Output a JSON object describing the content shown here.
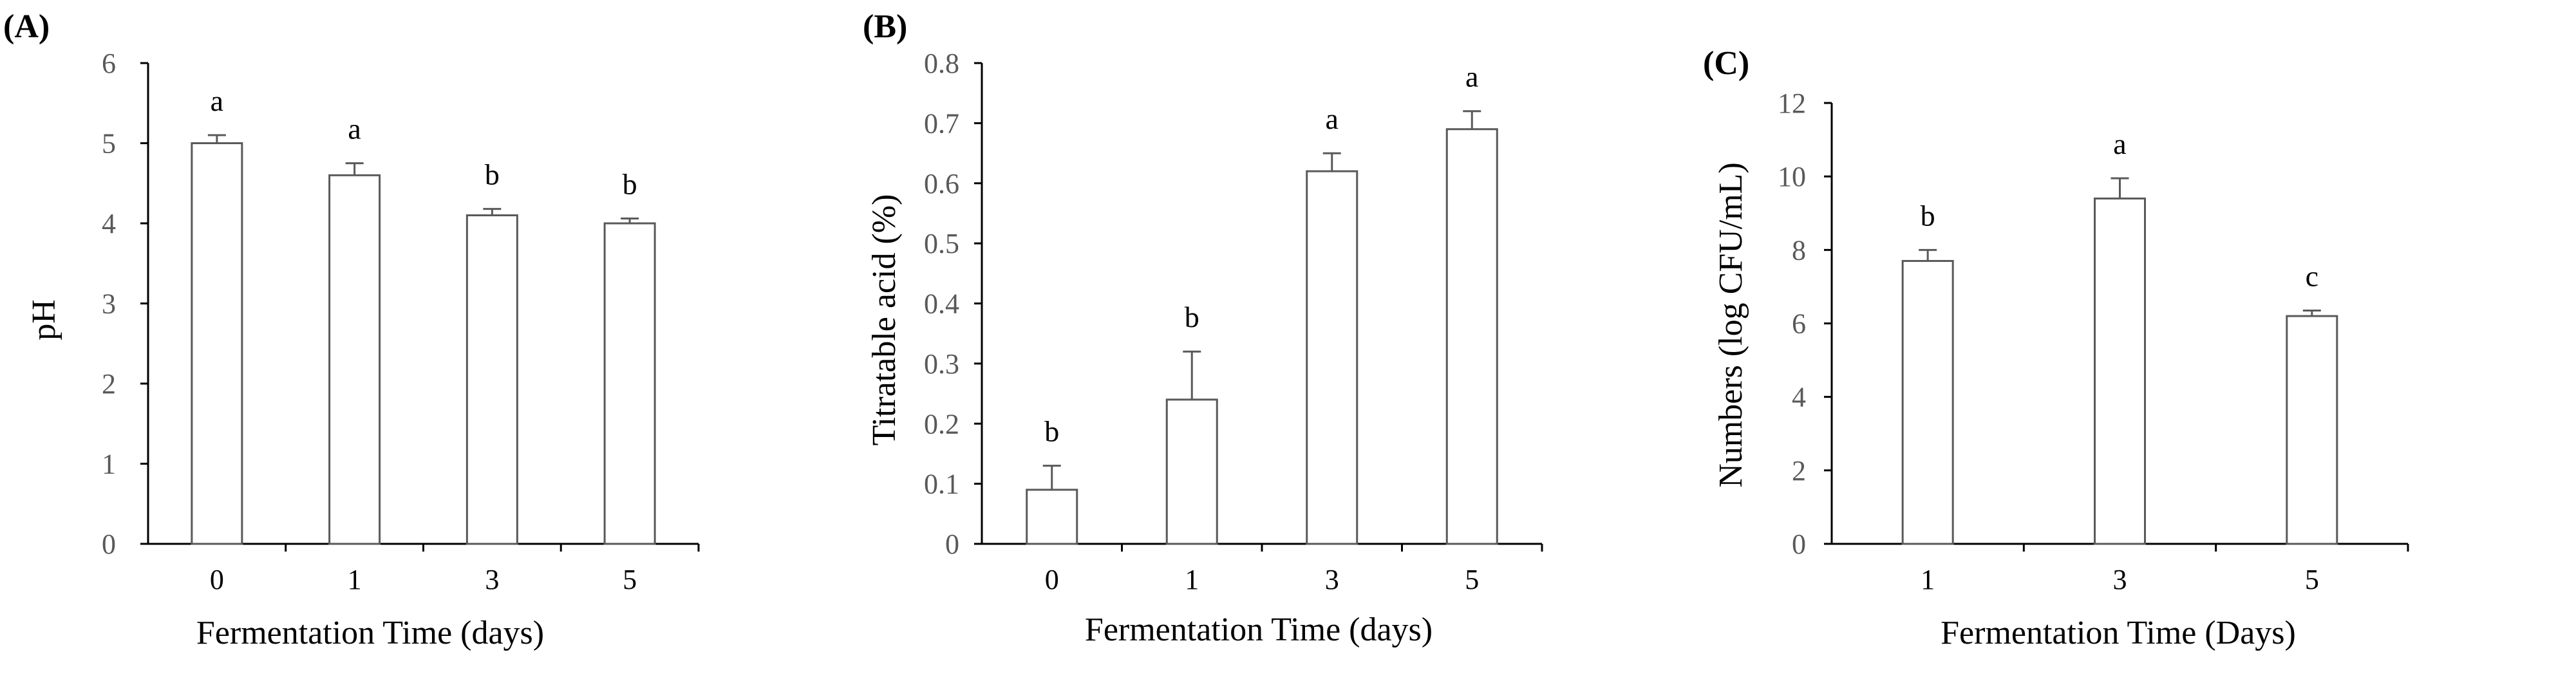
{
  "chart_data": [
    {
      "type": "bar",
      "panel_label": "(A)",
      "categories": [
        "0",
        "1",
        "3",
        "5"
      ],
      "values": [
        5.0,
        4.6,
        4.1,
        4.0
      ],
      "errors": [
        0.1,
        0.15,
        0.08,
        0.06
      ],
      "letters": [
        "a",
        "a",
        "b",
        "b"
      ],
      "ylabel": "pH",
      "xlabel": "Fermentation Time (days)",
      "ylim": [
        0,
        6
      ],
      "yticks": [
        "0",
        "1",
        "2",
        "3",
        "4",
        "5",
        "6"
      ]
    },
    {
      "type": "bar",
      "panel_label": "(B)",
      "categories": [
        "0",
        "1",
        "3",
        "5"
      ],
      "values": [
        0.09,
        0.24,
        0.62,
        0.69
      ],
      "errors": [
        0.04,
        0.08,
        0.03,
        0.03
      ],
      "letters": [
        "b",
        "b",
        "a",
        "a"
      ],
      "ylabel": "Titratable acid (%)",
      "xlabel": "Fermentation Time (days)",
      "ylim": [
        0,
        0.8
      ],
      "yticks": [
        "0",
        "0.1",
        "0.2",
        "0.3",
        "0.4",
        "0.5",
        "0.6",
        "0.7",
        "0.8"
      ]
    },
    {
      "type": "bar",
      "panel_label": "(C)",
      "categories": [
        "1",
        "3",
        "5"
      ],
      "values": [
        7.7,
        9.4,
        6.2
      ],
      "errors": [
        0.3,
        0.55,
        0.15
      ],
      "letters": [
        "b",
        "a",
        "c"
      ],
      "ylabel": "Numbers (log CFU/mL)",
      "xlabel": "Fermentation Time (Days)",
      "ylim": [
        0,
        12
      ],
      "yticks": [
        "0",
        "2",
        "4",
        "6",
        "8",
        "10",
        "12"
      ]
    }
  ]
}
